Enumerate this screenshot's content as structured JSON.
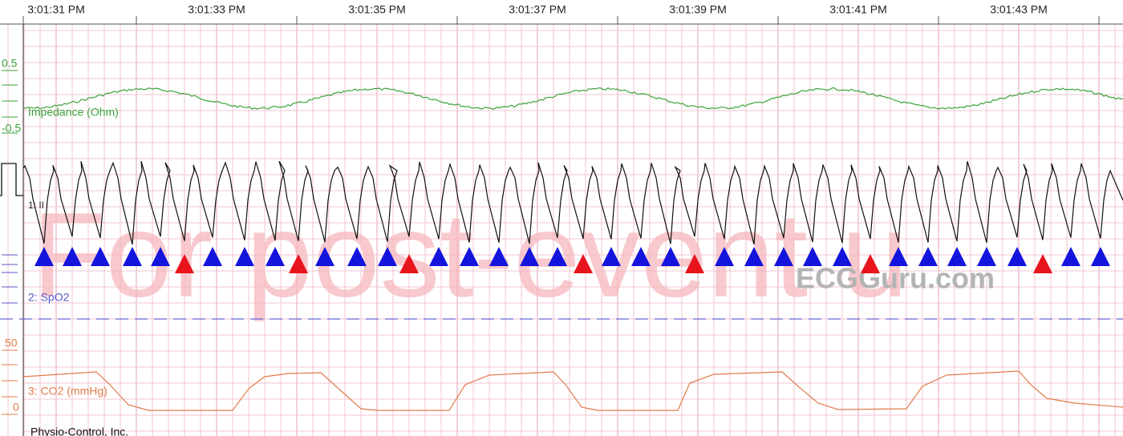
{
  "header": {
    "times": [
      "3:01:31 PM",
      "3:01:33 PM",
      "3:01:35 PM",
      "3:01:37 PM",
      "3:01:39 PM",
      "3:01:41 PM",
      "3:01:43 PM"
    ]
  },
  "channels": {
    "impedance": {
      "scale_high": "0.5",
      "scale_low": "-0.5",
      "label": "Impedance (Ohm)"
    },
    "ecg": {
      "label": "1: II"
    },
    "spo2": {
      "label": "2: SpO2"
    },
    "co2": {
      "scale_high": "50",
      "label": "3: CO2 (mmHg)",
      "scale_low": "0"
    }
  },
  "watermark": "For post-event u",
  "brand": "ECGGuru.com",
  "footer": "Physio-Control, Inc."
}
